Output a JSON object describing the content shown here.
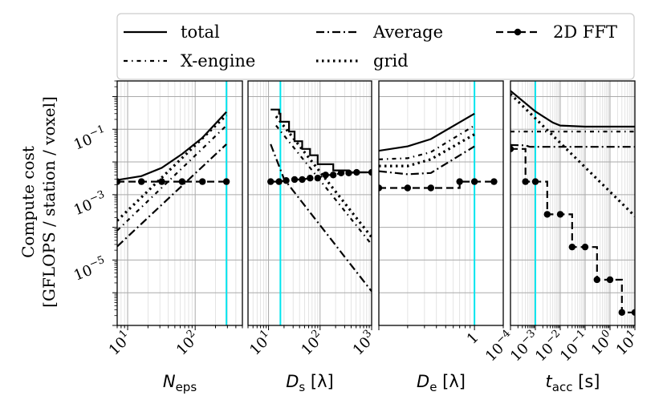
{
  "chart_data": {
    "type": "line",
    "ylabel_lines": [
      "Compute cost",
      "[GFLOPS / station / voxel]"
    ],
    "y_scale": "log",
    "ylim": [
      1e-07,
      3
    ],
    "y_ticks": [
      {
        "value": 0.1,
        "mantissa": "10",
        "exp": "−1"
      },
      {
        "value": 0.001,
        "mantissa": "10",
        "exp": "−3"
      },
      {
        "value": 1e-05,
        "mantissa": "10",
        "exp": "−5"
      }
    ],
    "legend": {
      "placement": "top",
      "entries": [
        {
          "key": "total",
          "label": "total"
        },
        {
          "key": "average",
          "label": "Average"
        },
        {
          "key": "fft",
          "label": "2D FFT"
        },
        {
          "key": "xengine",
          "label": "X-engine"
        },
        {
          "key": "grid",
          "label": "grid"
        }
      ]
    },
    "highlight_color": "#00e5ee",
    "panels": [
      {
        "id": "neps",
        "xlabel": {
          "main": "N",
          "sub": "eps",
          "unit": ""
        },
        "x_scale": "log",
        "xlim": [
          7,
          500
        ],
        "x_ticks": [
          {
            "value": 10,
            "mantissa": "10",
            "exp": "1"
          },
          {
            "value": 100,
            "mantissa": "10",
            "exp": "2"
          }
        ],
        "highlight_x": 290,
        "series": [
          {
            "key": "total",
            "x": [
              7,
              16,
              32,
              64,
              128,
              290
            ],
            "y": [
              0.0028,
              0.0037,
              0.0066,
              0.0175,
              0.055,
              0.34
            ]
          },
          {
            "key": "xengine",
            "x": [
              7,
              290
            ],
            "y": [
              8e-05,
              0.13
            ]
          },
          {
            "key": "grid",
            "x": [
              7,
              290
            ],
            "y": [
              0.00016,
              0.27
            ]
          },
          {
            "key": "average",
            "x": [
              7,
              290
            ],
            "y": [
              2.6e-05,
              0.035
            ]
          },
          {
            "key": "fft",
            "x": [
              7,
              16,
              32,
              64,
              128,
              290
            ],
            "y": [
              0.0025,
              0.0025,
              0.0025,
              0.0025,
              0.0025,
              0.0025
            ]
          }
        ]
      },
      {
        "id": "ds",
        "xlabel": {
          "main": "D",
          "sub": "s",
          "unit": "[λ]"
        },
        "x_scale": "log",
        "xlim": [
          4,
          1000
        ],
        "x_ticks": [
          {
            "value": 10,
            "mantissa": "10",
            "exp": "1"
          },
          {
            "value": 100,
            "mantissa": "10",
            "exp": "2"
          },
          {
            "value": 1000,
            "mantissa": "10",
            "exp": "3"
          }
        ],
        "highlight_x": 17,
        "series": [
          {
            "key": "total",
            "step": true,
            "x": [
              11,
              16,
              17,
              25,
              32,
              45,
              64,
              90,
              128,
              180,
              256,
              360,
              512,
              1000
            ],
            "y": [
              0.4,
              0.3,
              0.17,
              0.085,
              0.043,
              0.025,
              0.016,
              0.0085,
              0.0085,
              0.0055,
              0.0055,
              0.0048,
              0.0048,
              0.0048
            ]
          },
          {
            "key": "xengine",
            "x": [
              14,
              1000
            ],
            "y": [
              0.13,
              3e-05
            ]
          },
          {
            "key": "grid",
            "x": [
              14,
              1000
            ],
            "y": [
              0.25,
              5e-05
            ]
          },
          {
            "key": "average",
            "x": [
              11,
              20,
              1000
            ],
            "y": [
              0.035,
              0.003,
              1.1e-06
            ]
          },
          {
            "key": "fft",
            "x": [
              11,
              16,
              22,
              32,
              45,
              64,
              90,
              128,
              180,
              256,
              360,
              512,
              1000
            ],
            "y": [
              0.0025,
              0.0025,
              0.0027,
              0.0029,
              0.0029,
              0.0032,
              0.0032,
              0.004,
              0.004,
              0.0046,
              0.0046,
              0.0048,
              0.0048
            ]
          }
        ]
      },
      {
        "id": "de",
        "xlabel": {
          "main": "D",
          "sub": "e",
          "unit": "[λ]"
        },
        "x_scale": "log",
        "xlim": [
          0.1,
          2
        ],
        "x_ticks": [
          {
            "value": 1,
            "label": "1"
          }
        ],
        "highlight_x": 1,
        "series": [
          {
            "key": "total",
            "x": [
              0.1,
              0.2,
              0.35,
              1.0
            ],
            "y": [
              0.022,
              0.03,
              0.05,
              0.3
            ]
          },
          {
            "key": "xengine",
            "x": [
              0.1,
              0.2,
              0.35,
              1.0
            ],
            "y": [
              0.012,
              0.013,
              0.02,
              0.13
            ]
          },
          {
            "key": "grid",
            "x": [
              0.1,
              0.2,
              0.35,
              1.0
            ],
            "y": [
              0.0075,
              0.0075,
              0.012,
              0.07
            ]
          },
          {
            "key": "average",
            "x": [
              0.1,
              0.2,
              0.35,
              1.0
            ],
            "y": [
              0.0052,
              0.0042,
              0.0046,
              0.03
            ]
          },
          {
            "key": "fft",
            "step": true,
            "x": [
              0.1,
              0.2,
              0.35,
              0.7,
              1.0,
              1.6
            ],
            "y": [
              0.0016,
              0.0016,
              0.0016,
              0.0025,
              0.0025,
              0.0025
            ]
          }
        ]
      },
      {
        "id": "tacc",
        "xlabel": {
          "main": "t",
          "sub": "acc",
          "unit": "[s]"
        },
        "x_scale": "log",
        "xlim": [
          0.0001,
          10
        ],
        "x_ticks": [
          {
            "value": 0.0001,
            "mantissa": "10",
            "exp": "−4"
          },
          {
            "value": 0.001,
            "mantissa": "10",
            "exp": "−3"
          },
          {
            "value": 0.01,
            "mantissa": "10",
            "exp": "−2"
          },
          {
            "value": 0.1,
            "mantissa": "10",
            "exp": "−1"
          },
          {
            "value": 1,
            "mantissa": "10",
            "exp": "0"
          },
          {
            "value": 10,
            "mantissa": "10",
            "exp": "1"
          }
        ],
        "highlight_x": 0.001,
        "series": [
          {
            "key": "total",
            "x": [
              0.0001,
              0.001,
              0.005,
              0.01,
              0.1,
              1,
              10
            ],
            "y": [
              1.5,
              0.35,
              0.16,
              0.13,
              0.12,
              0.12,
              0.12
            ]
          },
          {
            "key": "xengine",
            "x": [
              0.0001,
              10
            ],
            "y": [
              0.085,
              0.085
            ]
          },
          {
            "key": "grid",
            "x": [
              0.0001,
              10
            ],
            "y": [
              1.2,
              0.00022
            ]
          },
          {
            "key": "average",
            "x": [
              0.0001,
              0.0004,
              0.0006,
              10
            ],
            "y": [
              0.033,
              0.032,
              0.029,
              0.029
            ]
          },
          {
            "key": "fft",
            "step": true,
            "x": [
              0.0001,
              0.0004,
              0.001,
              0.003,
              0.01,
              0.03,
              0.1,
              0.3,
              1,
              3,
              10
            ],
            "y": [
              0.025,
              0.0025,
              0.0025,
              0.00025,
              0.00025,
              2.5e-05,
              2.5e-05,
              2.5e-06,
              2.5e-06,
              2.5e-07,
              2.5e-07
            ]
          }
        ]
      }
    ]
  }
}
